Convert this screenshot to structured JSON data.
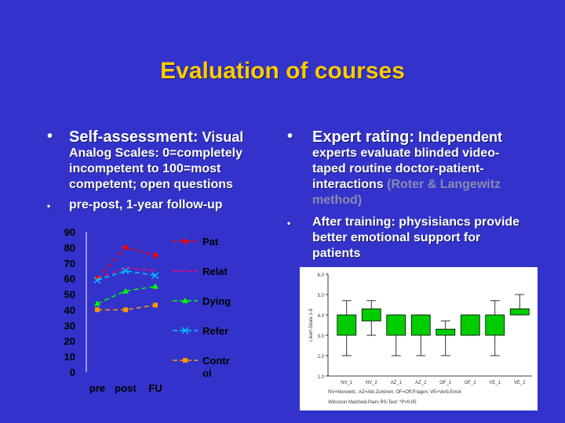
{
  "title": "Evaluation of courses",
  "left": {
    "bullet1_head": "Self-assessment:",
    "bullet1_body_first": " Visual",
    "bullet1_body_rest": "Analog Scales: 0=completely incompetent to 100=most competent; open questions",
    "bullet2": "pre-post, 1-year follow-up"
  },
  "right": {
    "bullet1_head": "Expert rating:",
    "bullet1_body_first": " Independent",
    "bullet1_body_rest": "experts evaluate blinded video-taped routine doctor-patient-interactions",
    "bullet1_gray": "(Roter & Langewitz method)",
    "bullet2": "After training: physisiancs provide better emotional support for patients"
  },
  "chart_data": [
    {
      "type": "line",
      "categories": [
        "pre",
        "post",
        "FU"
      ],
      "ylim": [
        0,
        90
      ],
      "yticks": [
        0,
        10,
        20,
        30,
        40,
        50,
        60,
        70,
        80,
        90
      ],
      "series": [
        {
          "name": "Pat",
          "values": [
            60,
            80,
            75
          ],
          "color": "#ff0000",
          "marker": "diamond"
        },
        {
          "name": "Relat",
          "values": [
            60,
            67,
            65
          ],
          "color": "#ff0066",
          "marker": "none"
        },
        {
          "name": "Dying",
          "values": [
            44,
            52,
            55
          ],
          "color": "#00ff00",
          "marker": "triangle"
        },
        {
          "name": "Refer",
          "values": [
            59,
            65,
            62
          ],
          "color": "#00ccff",
          "marker": "x"
        },
        {
          "name": "Contr ol",
          "values": [
            40,
            40,
            43
          ],
          "color": "#ff9900",
          "marker": "square"
        }
      ],
      "legend_position": "right"
    },
    {
      "type": "box",
      "ylabel": "Likert-Skala 1-5",
      "ylim": [
        1.0,
        6.0
      ],
      "yticks": [
        "1.0",
        "2.0",
        "3.0",
        "4.0",
        "5.0",
        "6.0"
      ],
      "categories": [
        "NV_1",
        "NV_2",
        "AZ_1",
        "AZ_2",
        "OF_1",
        "OF_2",
        "VE_1",
        "VE_2"
      ],
      "boxes": [
        {
          "q1": 3.0,
          "q3": 4.0,
          "min": 2.0,
          "max": 4.7
        },
        {
          "q1": 3.7,
          "q3": 4.3,
          "min": 3.0,
          "max": 4.7
        },
        {
          "q1": 3.0,
          "q3": 4.0,
          "min": 2.0,
          "max": 4.0
        },
        {
          "q1": 3.0,
          "q3": 4.0,
          "min": 2.0,
          "max": 4.0
        },
        {
          "q1": 3.0,
          "q3": 3.3,
          "min": 2.0,
          "max": 3.7
        },
        {
          "q1": 3.0,
          "q3": 4.0,
          "min": 3.0,
          "max": 4.0
        },
        {
          "q1": 3.0,
          "q3": 4.0,
          "min": 2.0,
          "max": 4.7
        },
        {
          "q1": 4.0,
          "q3": 4.3,
          "min": 4.0,
          "max": 5.0
        }
      ],
      "box_color": "#00cc00",
      "footnote1": "NV=Nonverb.; AZ=Akt.Zuhören; OF=Off.Fragen; VE=Verb.Emot",
      "footnote2": "Wilcoxon Matched-Pairs RS-Test: *P<0.05"
    }
  ]
}
